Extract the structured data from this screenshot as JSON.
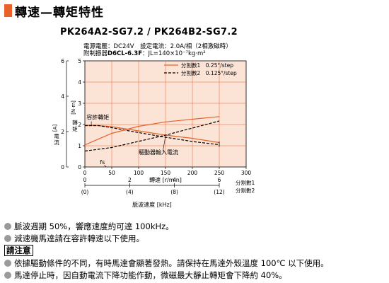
{
  "header": {
    "title": "轉速—轉矩特性",
    "accent_color": "#e8622a"
  },
  "model": "PK264A2-SG7.2 / PK264B2-SG7.2",
  "conditions": {
    "line1": "電源電壓：DC24V　設定電流：2.0A/相（2相激磁時）",
    "line2_label": "附制振器",
    "line2_model": "D6CL-6.3F",
    "line2_inertia": "：JL=140×10⁻⁷kg·m²"
  },
  "chart_data": {
    "type": "line",
    "x_axis": {
      "label": "轉速 [r/min]",
      "range": [
        0,
        300
      ],
      "ticks": [
        "0",
        "50",
        "100",
        "150",
        "200",
        "250",
        "300"
      ],
      "grid": true
    },
    "y_left_torque": {
      "label_chars": [
        "轉",
        "矩"
      ],
      "unit": "[N·m]",
      "range": [
        0,
        5
      ],
      "ticks": [
        "0",
        "1",
        "2",
        "3",
        "4",
        "5"
      ]
    },
    "y_left_current": {
      "label_chars": [
        "電",
        "流"
      ],
      "unit": "[A]",
      "range": [
        0,
        6
      ],
      "ticks": [
        "0",
        "2",
        "4",
        "6"
      ]
    },
    "secondary_x_axis": {
      "label": "脈波速度 [kHz]",
      "ticks": [
        {
          "div1": "0",
          "div2": "(0)"
        },
        {
          "div1": "2",
          "div2": "(4)"
        },
        {
          "div1": "4",
          "div2": "(8)"
        },
        {
          "div1": "6",
          "div2": "(12)"
        }
      ],
      "div1_label": "分割數1",
      "div2_label": "分割數2"
    },
    "legend": {
      "position": "top-right",
      "entries": [
        {
          "label": "分割數1　0.25°/step",
          "style": "solid",
          "color": "#e8622a"
        },
        {
          "label": "分割數2　0.125°/step",
          "style": "dashed",
          "color": "#000000"
        }
      ]
    },
    "annotations": {
      "torque": "容許轉矩",
      "current": "驅動器輸入電流",
      "fs": "fs"
    },
    "series": [
      {
        "name": "分割數1　0.25°/step",
        "curve": "torque",
        "x": [
          0,
          25,
          50,
          100,
          150,
          200,
          250
        ],
        "y": [
          1.95,
          1.95,
          1.9,
          1.7,
          1.5,
          1.35,
          1.15
        ]
      },
      {
        "name": "分割數2　0.125°/step",
        "curve": "torque",
        "x": [
          0,
          25,
          50,
          100,
          150,
          200,
          250
        ],
        "y": [
          1.95,
          1.95,
          1.85,
          1.62,
          1.4,
          1.2,
          1.05
        ]
      },
      {
        "name": "分割數1　0.25°/step",
        "curve": "current",
        "x": [
          0,
          50,
          100,
          150,
          200,
          250
        ],
        "y": [
          1.25,
          1.9,
          2.3,
          2.55,
          2.7,
          2.85
        ]
      },
      {
        "name": "分割數2　0.125°/step",
        "curve": "current",
        "x": [
          0,
          50,
          100,
          150,
          200,
          250
        ],
        "y": [
          0.9,
          1.1,
          1.45,
          1.8,
          2.2,
          2.6
        ]
      }
    ],
    "colors": {
      "plot_bg": "#fbe3d6",
      "series1": "#e8622a",
      "series2": "#000000",
      "grid": "#e8622a"
    }
  },
  "notes": {
    "line1": "脈波週期 50%，響應速度約可達 100kHz。",
    "line2": "減速機馬達請在容許轉速以下使用。",
    "heading": "請注意",
    "line3": "依據驅動條件的不同，有時馬達會顯著發熱。請保持在馬達外殼溫度 100℃ 以下使用。",
    "line4": "馬達停止時，因自動電流下降功能作動，微磁最大靜止轉矩會下降約 40%。"
  }
}
